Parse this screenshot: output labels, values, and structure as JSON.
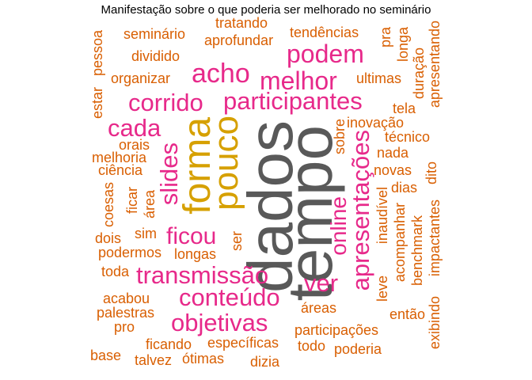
{
  "title": "Manifestação sobre o que poderia ser melhorado no seminário",
  "colors": {
    "orange": "#d95f02",
    "pink": "#e7298a",
    "gold": "#e6ab02",
    "gray": "#666666"
  },
  "words": {
    "dados": "dados",
    "tempo": "tempo",
    "forma": "forma",
    "pouco": "pouco",
    "acho": "acho",
    "melhor": "melhor",
    "podem": "podem",
    "corrido": "corrido",
    "participantes": "participantes",
    "cada": "cada",
    "slides": "slides",
    "ficou": "ficou",
    "transmissao": "transmissão",
    "ver": "ver",
    "conteudo": "conteúdo",
    "objetivas": "objetivas",
    "online": "online",
    "apresentacoes": "apresentações",
    "seminario": "seminário",
    "tratando": "tratando",
    "tendencias": "tendências",
    "aprofundar": "aprofundar",
    "dividido": "dividido",
    "organizar": "organizar",
    "ultimas": "ultimas",
    "pra": "pra",
    "longa": "longa",
    "duracao": "duração",
    "apresentando": "apresentando",
    "estar": "estar",
    "pessoa": "pessoa",
    "tela": "tela",
    "inovacao": "inovação",
    "tecnico": "técnico",
    "orais": "orais",
    "melhoria": "melhoria",
    "ciencia": "ciência",
    "sobre": "sobre",
    "nada": "nada",
    "novas": "novas",
    "dias": "dias",
    "dito": "dito",
    "coesas": "coesas",
    "ficar": "ficar",
    "area": "área",
    "sim": "sim",
    "dois": "dois",
    "podermos": "podermos",
    "longas": "longas",
    "ser": "ser",
    "inaudivel": "inaudível",
    "acompanhar": "acompanhar",
    "benchmark": "benchmark",
    "impactantes": "impactantes",
    "toda": "toda",
    "acabou": "acabou",
    "palestras": "palestras",
    "pro": "pro",
    "areas": "áreas",
    "leve": "leve",
    "entao": "então",
    "exibindo": "exibindo",
    "participacoes": "participações",
    "ficando": "ficando",
    "especificas": "específicas",
    "todo": "todo",
    "poderia": "poderia",
    "base": "base",
    "talvez": "talvez",
    "otimas": "ótimas",
    "dizia": "dizia"
  }
}
